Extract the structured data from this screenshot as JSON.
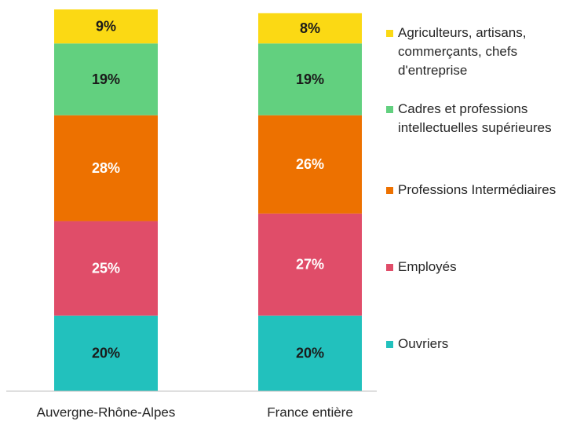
{
  "chart_data": {
    "type": "stacked_bar",
    "categories": [
      "Auvergne-Rhône-Alpes",
      "France entière"
    ],
    "series": [
      {
        "name": "Ouvriers",
        "color": "#22c1bd",
        "label_color": "#1a1a1a",
        "values": [
          20,
          20
        ],
        "value_labels": [
          "20%",
          "20%"
        ]
      },
      {
        "name": "Employés",
        "color": "#e04d69",
        "label_color": "#ffffff",
        "values": [
          25,
          27
        ],
        "value_labels": [
          "25%",
          "27%"
        ]
      },
      {
        "name": "Professions Intermédiaires",
        "color": "#ed7100",
        "label_color": "#ffffff",
        "values": [
          28,
          26
        ],
        "value_labels": [
          "28%",
          "26%"
        ]
      },
      {
        "name": "Cadres et professions intellectuelles supérieures",
        "color": "#62d07f",
        "label_color": "#1a1a1a",
        "values": [
          19,
          19
        ],
        "value_labels": [
          "19%",
          "19%"
        ]
      },
      {
        "name": "Agriculteurs, artisans, commerçants, chefs d'entreprise",
        "color": "#fbd914",
        "label_color": "#1a1a1a",
        "values": [
          9,
          8
        ],
        "value_labels": [
          "9%",
          "8%"
        ]
      }
    ]
  }
}
